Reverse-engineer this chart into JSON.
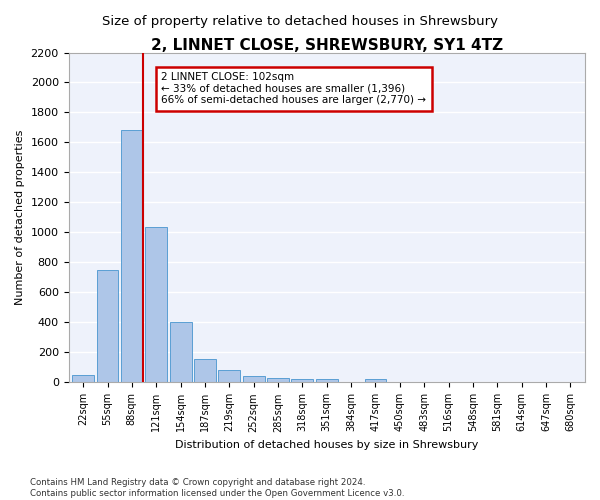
{
  "title": "2, LINNET CLOSE, SHREWSBURY, SY1 4TZ",
  "subtitle": "Size of property relative to detached houses in Shrewsbury",
  "xlabel": "Distribution of detached houses by size in Shrewsbury",
  "ylabel": "Number of detached properties",
  "categories": [
    "22sqm",
    "55sqm",
    "88sqm",
    "121sqm",
    "154sqm",
    "187sqm",
    "219sqm",
    "252sqm",
    "285sqm",
    "318sqm",
    "351sqm",
    "384sqm",
    "417sqm",
    "450sqm",
    "483sqm",
    "516sqm",
    "548sqm",
    "581sqm",
    "614sqm",
    "647sqm",
    "680sqm"
  ],
  "values": [
    50,
    750,
    1680,
    1035,
    405,
    155,
    80,
    45,
    30,
    20,
    20,
    0,
    20,
    0,
    0,
    0,
    0,
    0,
    0,
    0,
    0
  ],
  "bar_color": "#aec6e8",
  "bar_edge_color": "#5a9fd4",
  "annotation_line1": "2 LINNET CLOSE: 102sqm",
  "annotation_line2": "← 33% of detached houses are smaller (1,396)",
  "annotation_line3": "66% of semi-detached houses are larger (2,770) →",
  "annotation_box_color": "#ffffff",
  "annotation_box_edge_color": "#cc0000",
  "vline_color": "#cc0000",
  "vline_x_idx": 2.45,
  "ylim": [
    0,
    2200
  ],
  "yticks": [
    0,
    200,
    400,
    600,
    800,
    1000,
    1200,
    1400,
    1600,
    1800,
    2000,
    2200
  ],
  "bg_color": "#eef2fb",
  "grid_color": "#ffffff",
  "footer_text": "Contains HM Land Registry data © Crown copyright and database right 2024.\nContains public sector information licensed under the Open Government Licence v3.0.",
  "title_fontsize": 11,
  "subtitle_fontsize": 9.5,
  "axis_label_fontsize": 8,
  "tick_fontsize": 8
}
